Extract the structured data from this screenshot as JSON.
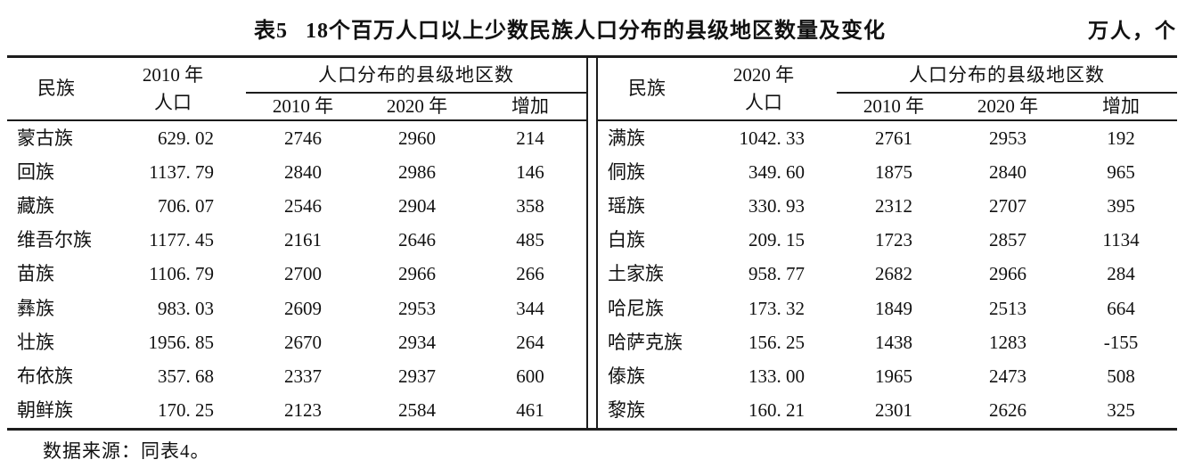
{
  "caption": {
    "label": "表5",
    "title": "18个百万人口以上少数民族人口分布的县级地区数量及变化",
    "unit": "万人，个"
  },
  "table": {
    "panels": [
      {
        "col_ethnic": "民族",
        "col_pop_line1": "2010 年",
        "col_pop_line2": "人口",
        "col_group": "人口分布的县级地区数",
        "col_sub": [
          "2010 年",
          "2020 年",
          "增加"
        ],
        "rows": [
          [
            "蒙古族",
            "629. 02",
            "2746",
            "2960",
            "214"
          ],
          [
            "回族",
            "1137. 79",
            "2840",
            "2986",
            "146"
          ],
          [
            "藏族",
            "706. 07",
            "2546",
            "2904",
            "358"
          ],
          [
            "维吾尔族",
            "1177. 45",
            "2161",
            "2646",
            "485"
          ],
          [
            "苗族",
            "1106. 79",
            "2700",
            "2966",
            "266"
          ],
          [
            "彝族",
            "983. 03",
            "2609",
            "2953",
            "344"
          ],
          [
            "壮族",
            "1956. 85",
            "2670",
            "2934",
            "264"
          ],
          [
            "布依族",
            "357. 68",
            "2337",
            "2937",
            "600"
          ],
          [
            "朝鲜族",
            "170. 25",
            "2123",
            "2584",
            "461"
          ]
        ]
      },
      {
        "col_ethnic": "民族",
        "col_pop_line1": "2020 年",
        "col_pop_line2": "人口",
        "col_group": "人口分布的县级地区数",
        "col_sub": [
          "2010 年",
          "2020 年",
          "增加"
        ],
        "rows": [
          [
            "满族",
            "1042. 33",
            "2761",
            "2953",
            "192"
          ],
          [
            "侗族",
            "349. 60",
            "1875",
            "2840",
            "965"
          ],
          [
            "瑶族",
            "330. 93",
            "2312",
            "2707",
            "395"
          ],
          [
            "白族",
            "209. 15",
            "1723",
            "2857",
            "1134"
          ],
          [
            "土家族",
            "958. 77",
            "2682",
            "2966",
            "284"
          ],
          [
            "哈尼族",
            "173. 32",
            "1849",
            "2513",
            "664"
          ],
          [
            "哈萨克族",
            "156. 25",
            "1438",
            "1283",
            "-155"
          ],
          [
            "傣族",
            "133. 00",
            "1965",
            "2473",
            "508"
          ],
          [
            "黎族",
            "160. 21",
            "2301",
            "2626",
            "325"
          ]
        ]
      }
    ]
  },
  "footnote": "数据来源：同表4。"
}
